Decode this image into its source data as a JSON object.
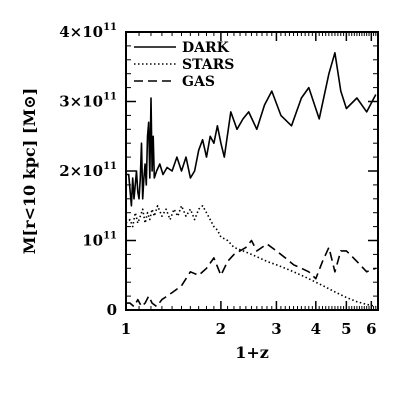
{
  "chart_data": {
    "type": "line",
    "xlabel": "1+z",
    "ylabel": "M[r<10 kpc] [M⊙]",
    "xscale": "log",
    "xlim": [
      1,
      6.3
    ],
    "ylim": [
      0,
      400000000000.0
    ],
    "x_ticks": [
      {
        "value": 1,
        "label": "1"
      },
      {
        "value": 2,
        "label": "2"
      },
      {
        "value": 3,
        "label": "3"
      },
      {
        "value": 4,
        "label": "4"
      },
      {
        "value": 5,
        "label": "5"
      },
      {
        "value": 6,
        "label": "6"
      }
    ],
    "y_ticks": [
      {
        "value": 0,
        "mantissa": "0",
        "exponent": ""
      },
      {
        "value": 100000000000.0,
        "mantissa": "10",
        "exponent": "11"
      },
      {
        "value": 200000000000.0,
        "mantissa": "2×10",
        "exponent": "11"
      },
      {
        "value": 300000000000.0,
        "mantissa": "3×10",
        "exponent": "11"
      },
      {
        "value": 400000000000.0,
        "mantissa": "4×10",
        "exponent": "11"
      }
    ],
    "grid": false,
    "legend_position": "top-left",
    "series": [
      {
        "name": "DARK",
        "style": "solid",
        "x": [
          1.0,
          1.02,
          1.04,
          1.05,
          1.06,
          1.08,
          1.09,
          1.1,
          1.11,
          1.12,
          1.13,
          1.14,
          1.15,
          1.16,
          1.17,
          1.18,
          1.19,
          1.2,
          1.21,
          1.22,
          1.23,
          1.25,
          1.28,
          1.31,
          1.35,
          1.4,
          1.45,
          1.5,
          1.55,
          1.6,
          1.65,
          1.7,
          1.75,
          1.8,
          1.85,
          1.9,
          1.95,
          2.0,
          2.05,
          2.15,
          2.25,
          2.35,
          2.45,
          2.6,
          2.75,
          2.9,
          3.1,
          3.35,
          3.6,
          3.8,
          4.1,
          4.4,
          4.6,
          4.8,
          5.0,
          5.4,
          5.8,
          6.2
        ],
        "y": [
          195000000000.0,
          195000000000.0,
          150000000000.0,
          190000000000.0,
          160000000000.0,
          200000000000.0,
          170000000000.0,
          160000000000.0,
          190000000000.0,
          240000000000.0,
          160000000000.0,
          190000000000.0,
          210000000000.0,
          180000000000.0,
          250000000000.0,
          270000000000.0,
          190000000000.0,
          305000000000.0,
          200000000000.0,
          250000000000.0,
          190000000000.0,
          200000000000.0,
          210000000000.0,
          195000000000.0,
          205000000000.0,
          200000000000.0,
          220000000000.0,
          200000000000.0,
          220000000000.0,
          190000000000.0,
          200000000000.0,
          230000000000.0,
          245000000000.0,
          220000000000.0,
          250000000000.0,
          240000000000.0,
          265000000000.0,
          240000000000.0,
          220000000000.0,
          285000000000.0,
          260000000000.0,
          275000000000.0,
          285000000000.0,
          260000000000.0,
          295000000000.0,
          315000000000.0,
          280000000000.0,
          265000000000.0,
          305000000000.0,
          320000000000.0,
          275000000000.0,
          340000000000.0,
          370000000000.0,
          315000000000.0,
          290000000000.0,
          305000000000.0,
          285000000000.0,
          310000000000.0
        ]
      },
      {
        "name": "STARS",
        "style": "dotted",
        "x": [
          1.0,
          1.03,
          1.05,
          1.07,
          1.09,
          1.11,
          1.13,
          1.15,
          1.17,
          1.19,
          1.21,
          1.23,
          1.26,
          1.3,
          1.34,
          1.38,
          1.42,
          1.46,
          1.5,
          1.55,
          1.6,
          1.65,
          1.7,
          1.75,
          1.8,
          1.85,
          1.9,
          1.95,
          2.0,
          2.1,
          2.2,
          2.35,
          2.5,
          2.65,
          2.8,
          3.0,
          3.2,
          3.4,
          3.6,
          3.8,
          4.0,
          4.3,
          4.6,
          5.0,
          5.4,
          5.8,
          6.2
        ],
        "y": [
          125000000000.0,
          130000000000.0,
          120000000000.0,
          140000000000.0,
          125000000000.0,
          135000000000.0,
          145000000000.0,
          125000000000.0,
          140000000000.0,
          130000000000.0,
          145000000000.0,
          135000000000.0,
          150000000000.0,
          135000000000.0,
          145000000000.0,
          130000000000.0,
          145000000000.0,
          135000000000.0,
          150000000000.0,
          135000000000.0,
          145000000000.0,
          130000000000.0,
          145000000000.0,
          150000000000.0,
          140000000000.0,
          130000000000.0,
          120000000000.0,
          115000000000.0,
          105000000000.0,
          100000000000.0,
          90000000000.0,
          85000000000.0,
          80000000000.0,
          75000000000.0,
          70000000000.0,
          65000000000.0,
          60000000000.0,
          55000000000.0,
          50000000000.0,
          45000000000.0,
          40000000000.0,
          33000000000.0,
          26000000000.0,
          18000000000.0,
          12000000000.0,
          8000000000.0,
          5000000000.0
        ]
      },
      {
        "name": "GAS",
        "style": "dashed",
        "x": [
          1.0,
          1.03,
          1.06,
          1.09,
          1.12,
          1.15,
          1.18,
          1.21,
          1.25,
          1.3,
          1.35,
          1.4,
          1.45,
          1.5,
          1.55,
          1.6,
          1.7,
          1.8,
          1.9,
          2.0,
          2.1,
          2.2,
          2.3,
          2.4,
          2.5,
          2.6,
          2.8,
          3.0,
          3.2,
          3.4,
          3.6,
          3.8,
          4.0,
          4.2,
          4.4,
          4.6,
          4.8,
          5.0,
          5.4,
          5.8,
          6.2
        ],
        "y": [
          10000000000.0,
          10000000000.0,
          5000000000.0,
          15000000000.0,
          5000000000.0,
          10000000000.0,
          20000000000.0,
          10000000000.0,
          5000000000.0,
          15000000000.0,
          20000000000.0,
          25000000000.0,
          30000000000.0,
          35000000000.0,
          45000000000.0,
          55000000000.0,
          50000000000.0,
          60000000000.0,
          75000000000.0,
          50000000000.0,
          70000000000.0,
          80000000000.0,
          85000000000.0,
          90000000000.0,
          100000000000.0,
          85000000000.0,
          95000000000.0,
          85000000000.0,
          75000000000.0,
          65000000000.0,
          60000000000.0,
          55000000000.0,
          45000000000.0,
          70000000000.0,
          90000000000.0,
          55000000000.0,
          85000000000.0,
          85000000000.0,
          70000000000.0,
          55000000000.0,
          60000000000.0
        ]
      }
    ]
  }
}
